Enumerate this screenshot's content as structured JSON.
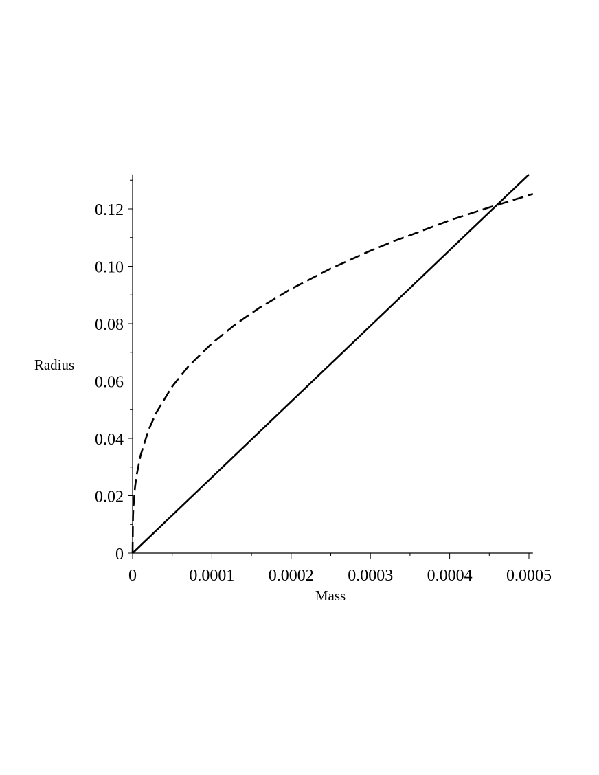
{
  "chart_data": {
    "type": "line",
    "title": "",
    "xlabel": "Mass",
    "ylabel": "Radius",
    "xlim": [
      0,
      0.000505
    ],
    "ylim": [
      0,
      0.132
    ],
    "grid": false,
    "x_ticks": [
      {
        "value": 0,
        "label": "0"
      },
      {
        "value": 0.0001,
        "label": "0.0001"
      },
      {
        "value": 0.0002,
        "label": "0.0002"
      },
      {
        "value": 0.0003,
        "label": "0.0003"
      },
      {
        "value": 0.0004,
        "label": "0.0004"
      },
      {
        "value": 0.0005,
        "label": "0.0005"
      }
    ],
    "y_ticks": [
      {
        "value": 0,
        "label": "0"
      },
      {
        "value": 0.02,
        "label": "0.02"
      },
      {
        "value": 0.04,
        "label": "0.04"
      },
      {
        "value": 0.06,
        "label": "0.06"
      },
      {
        "value": 0.08,
        "label": "0.08"
      },
      {
        "value": 0.1,
        "label": "0.10"
      },
      {
        "value": 0.12,
        "label": "0.12"
      }
    ],
    "series": [
      {
        "style": "solid",
        "color": "#000000",
        "x": [
          0,
          0.0001,
          0.0002,
          0.0003,
          0.0004,
          0.0005
        ],
        "y": [
          0,
          0.0264,
          0.0528,
          0.0792,
          0.1056,
          0.132
        ]
      },
      {
        "style": "dashed",
        "color": "#000000",
        "x": [
          0,
          5e-07,
          1e-06,
          3e-06,
          5e-06,
          1e-05,
          2e-05,
          3e-05,
          5e-05,
          7e-05,
          0.0001,
          0.00013,
          0.00016,
          0.0002,
          0.00025,
          0.0003,
          0.00033,
          0.00035,
          0.0004,
          0.00045,
          0.000505
        ],
        "y": [
          0,
          0.0126,
          0.0158,
          0.0228,
          0.027,
          0.034,
          0.0428,
          0.049,
          0.0581,
          0.065,
          0.0731,
          0.0798,
          0.0855,
          0.0921,
          0.0992,
          0.1054,
          0.1088,
          0.1108,
          0.116,
          0.1205,
          0.1252
        ]
      }
    ]
  }
}
